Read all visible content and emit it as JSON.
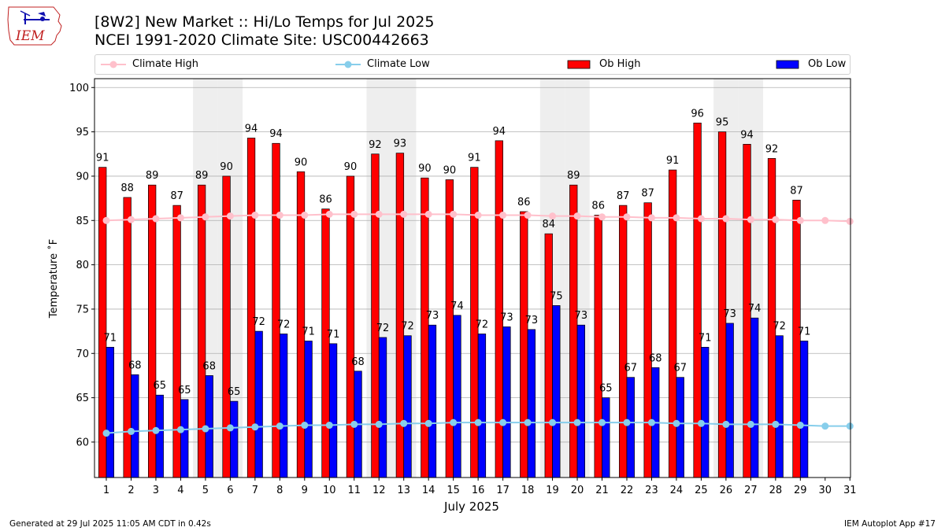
{
  "header": {
    "logo_text": "IEM",
    "title_line1": "[8W2] New Market :: Hi/Lo Temps for Jul 2025",
    "title_line2": "NCEI 1991-2020 Climate Site: USC00442663"
  },
  "footer": {
    "generated": "Generated at 29 Jul 2025 11:05 AM CDT in 0.42s",
    "app": "IEM Autoplot App #17"
  },
  "colors": {
    "ob_high": "#ff0000",
    "ob_low": "#0000ff",
    "climate_high": "#ffc0cb",
    "climate_low": "#87ceeb",
    "weekend_band": "#eeeeee",
    "grid": "#b0b0b0"
  },
  "chart_data": {
    "type": "bar",
    "title": "[8W2] New Market :: Hi/Lo Temps for Jul 2025",
    "subtitle": "NCEI 1991-2020 Climate Site: USC00442663",
    "xlabel": "July 2025",
    "ylabel": "Temperature ˚F",
    "ylim": [
      56,
      101
    ],
    "yticks": [
      60,
      65,
      70,
      75,
      80,
      85,
      90,
      95,
      100
    ],
    "grid": true,
    "legend_position": "top",
    "categories": [
      "1",
      "2",
      "3",
      "4",
      "5",
      "6",
      "7",
      "8",
      "9",
      "10",
      "11",
      "12",
      "13",
      "14",
      "15",
      "16",
      "17",
      "18",
      "19",
      "20",
      "21",
      "22",
      "23",
      "24",
      "25",
      "26",
      "27",
      "28",
      "29",
      "30",
      "31"
    ],
    "shaded_days": [
      5,
      6,
      12,
      13,
      19,
      20,
      26,
      27
    ],
    "series": [
      {
        "name": "Ob High",
        "kind": "bar",
        "values": [
          91,
          88,
          89,
          87,
          89,
          90,
          94,
          94,
          90,
          86,
          90,
          92,
          93,
          90,
          90,
          91,
          94,
          86,
          84,
          89,
          86,
          87,
          87,
          91,
          96,
          95,
          94,
          92,
          87,
          null,
          null
        ],
        "plotted": [
          91.0,
          87.6,
          89.0,
          86.7,
          89.0,
          90.0,
          94.3,
          93.7,
          90.5,
          86.3,
          90.0,
          92.5,
          92.6,
          89.8,
          89.6,
          91.0,
          94.0,
          86.0,
          83.5,
          89.0,
          85.6,
          86.7,
          87.0,
          90.7,
          96.0,
          95.0,
          93.6,
          92.0,
          87.3,
          null,
          null
        ]
      },
      {
        "name": "Ob Low",
        "kind": "bar",
        "values": [
          71,
          68,
          65,
          65,
          68,
          65,
          72,
          72,
          71,
          71,
          68,
          72,
          72,
          73,
          74,
          72,
          73,
          73,
          75,
          73,
          65,
          67,
          68,
          67,
          71,
          73,
          74,
          72,
          71,
          null,
          null
        ],
        "plotted": [
          70.7,
          67.6,
          65.3,
          64.8,
          67.5,
          64.6,
          72.5,
          72.2,
          71.4,
          71.1,
          68.0,
          71.8,
          72.0,
          73.2,
          74.3,
          72.2,
          73.0,
          72.7,
          75.4,
          73.2,
          65.0,
          67.3,
          68.4,
          67.3,
          70.7,
          73.4,
          74.0,
          72.0,
          71.4,
          null,
          null
        ]
      },
      {
        "name": "Climate High",
        "kind": "line",
        "values": [
          85.0,
          85.1,
          85.2,
          85.3,
          85.4,
          85.5,
          85.6,
          85.6,
          85.6,
          85.7,
          85.7,
          85.7,
          85.7,
          85.7,
          85.7,
          85.6,
          85.6,
          85.6,
          85.5,
          85.5,
          85.4,
          85.4,
          85.3,
          85.3,
          85.2,
          85.2,
          85.1,
          85.1,
          85.0,
          85.0,
          84.9
        ]
      },
      {
        "name": "Climate Low",
        "kind": "line",
        "values": [
          61.0,
          61.2,
          61.3,
          61.4,
          61.5,
          61.6,
          61.7,
          61.8,
          61.9,
          61.9,
          62.0,
          62.0,
          62.1,
          62.1,
          62.2,
          62.2,
          62.2,
          62.2,
          62.2,
          62.2,
          62.2,
          62.2,
          62.2,
          62.1,
          62.1,
          62.0,
          62.0,
          62.0,
          61.9,
          61.8,
          61.8
        ]
      }
    ]
  }
}
